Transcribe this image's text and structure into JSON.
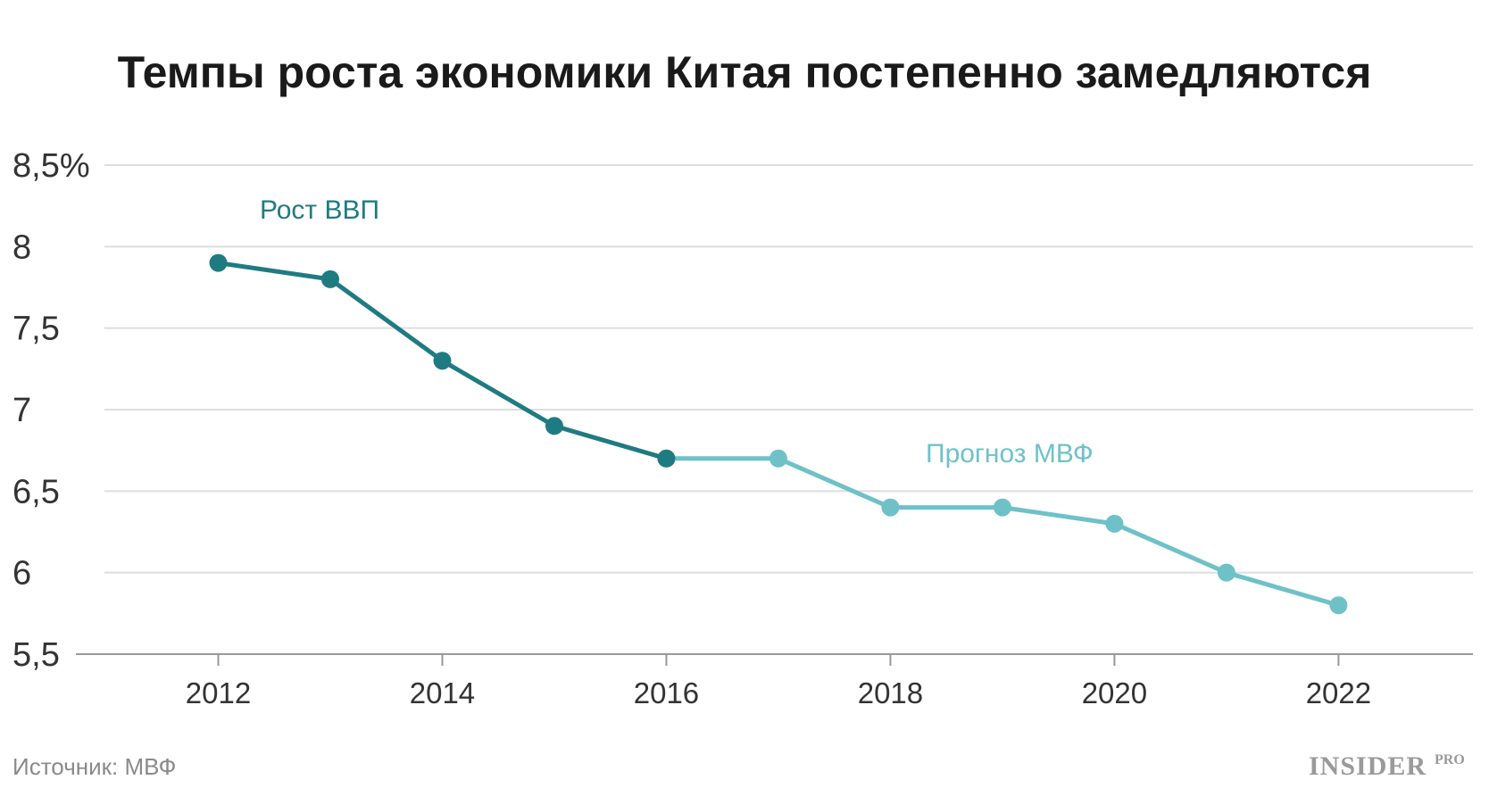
{
  "chart_data": {
    "type": "line",
    "title": "Темпы роста экономики Китая постепенно замедляются",
    "xlabel": "",
    "ylabel": "",
    "x_ticks": [
      2012,
      2014,
      2016,
      2018,
      2020,
      2022
    ],
    "xlim": [
      2011,
      2023.2
    ],
    "ylim": [
      5.5,
      8.5
    ],
    "y_ticks": [
      {
        "value": 8.5,
        "label": "8,5%"
      },
      {
        "value": 8,
        "label": "8"
      },
      {
        "value": 7.5,
        "label": "7,5"
      },
      {
        "value": 7,
        "label": "7"
      },
      {
        "value": 6.5,
        "label": "6,5"
      },
      {
        "value": 6,
        "label": "6"
      },
      {
        "value": 5.5,
        "label": "5,5"
      }
    ],
    "grid": true,
    "series": [
      {
        "name": "Рост ВВП",
        "color": "#1f7b82",
        "x": [
          2012,
          2013,
          2014,
          2015,
          2016
        ],
        "y": [
          7.9,
          7.8,
          7.3,
          6.9,
          6.7
        ]
      },
      {
        "name": "Прогноз МВФ",
        "color": "#6fc1c8",
        "x": [
          2016,
          2017,
          2018,
          2019,
          2020,
          2021,
          2022
        ],
        "y": [
          6.7,
          6.7,
          6.4,
          6.4,
          6.3,
          6.0,
          5.8
        ]
      }
    ],
    "source": "Источник: МВФ",
    "brand": "INSIDER",
    "brand_sup": "PRO"
  }
}
